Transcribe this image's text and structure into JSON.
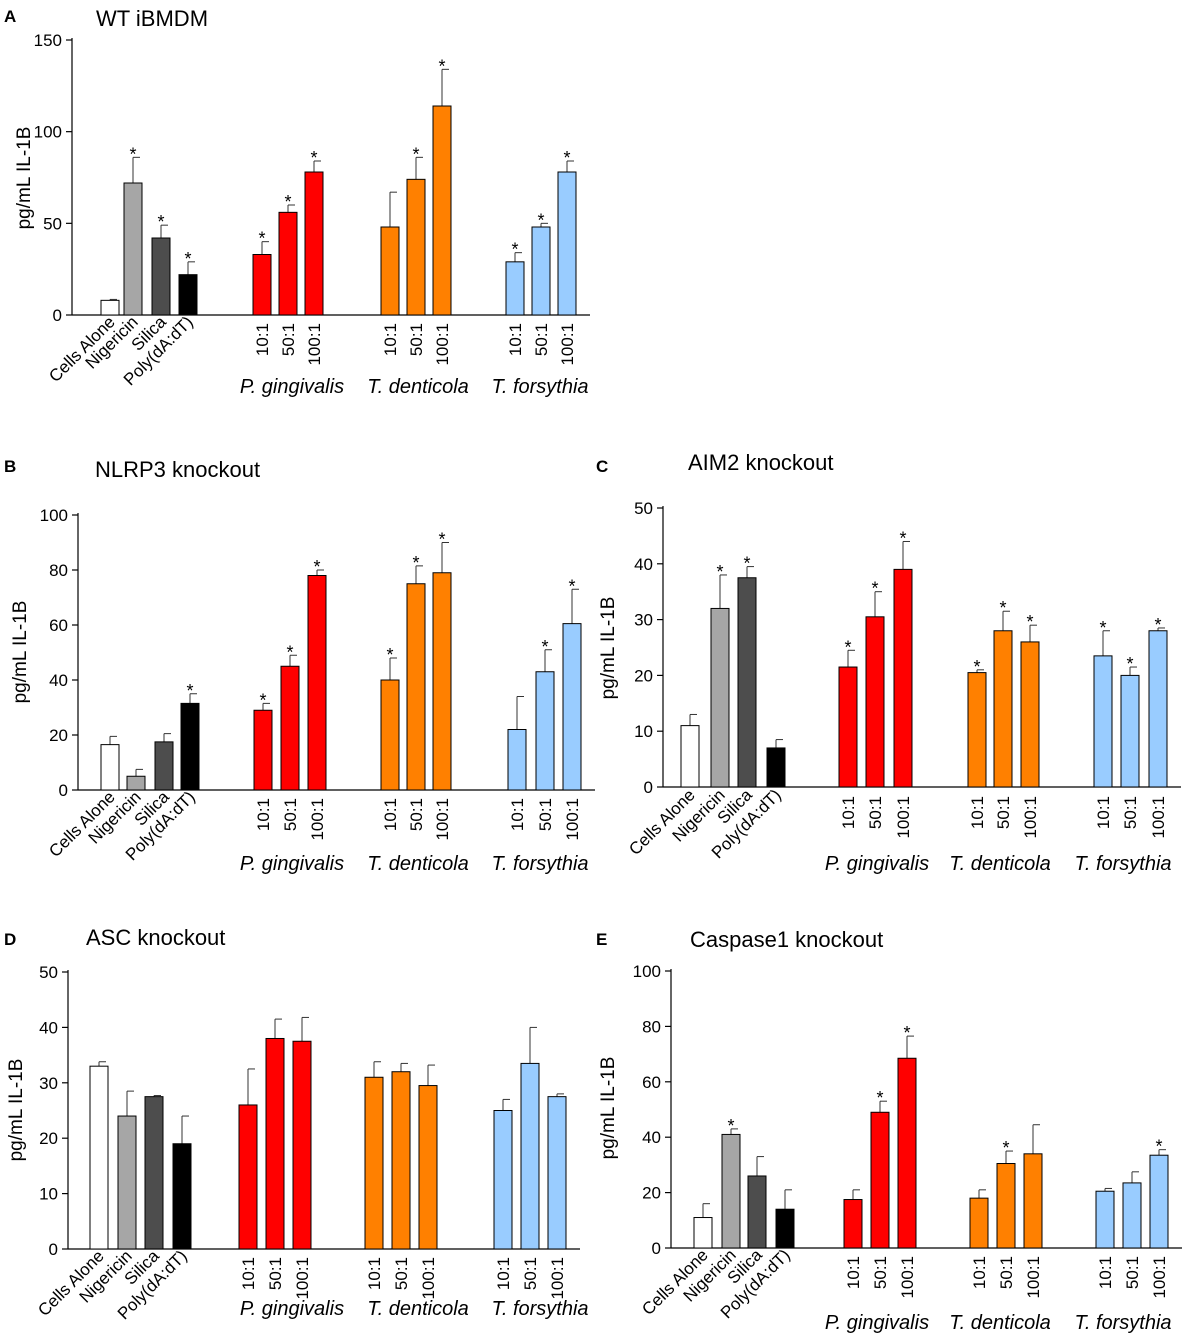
{
  "figure": {
    "group_labels": [
      "P. gingivalis",
      "T. denticola",
      "T. forsythia"
    ],
    "control_labels": [
      "Cells Alone",
      "Nigericin",
      "Silica",
      "Poly(dA:dT)"
    ],
    "ratio_labels": [
      "10:1",
      "50:1",
      "100:1"
    ],
    "colors": {
      "cells_alone": "#ffffff",
      "nigericin": "#a6a6a6",
      "silica": "#4d4d4d",
      "poly": "#000000",
      "p_gingivalis": "#ff0000",
      "t_denticola": "#ff8000",
      "t_forsythia": "#99ccff"
    }
  },
  "chart_data": [
    {
      "type": "bar",
      "letter": "A",
      "title": "WT iBMDM",
      "ylabel": "pg/mL IL-1B",
      "ylim": [
        0,
        150
      ],
      "yticks": [
        0,
        50,
        100,
        150
      ],
      "values": [
        8,
        72,
        42,
        22,
        33,
        56,
        78,
        48,
        74,
        114,
        29,
        48,
        78
      ],
      "errors": [
        0.5,
        14,
        7,
        7,
        7,
        4,
        6,
        19,
        12,
        20,
        5,
        2,
        6
      ],
      "significant": [
        false,
        true,
        true,
        true,
        true,
        true,
        true,
        false,
        true,
        true,
        true,
        true,
        true
      ]
    },
    {
      "type": "bar",
      "letter": "B",
      "title": "NLRP3 knockout",
      "ylabel": "pg/mL IL-1B",
      "ylim": [
        0,
        100
      ],
      "yticks": [
        0,
        20,
        40,
        60,
        80,
        100
      ],
      "values": [
        16.5,
        5,
        17.5,
        31.5,
        29,
        45,
        78,
        40,
        75,
        79,
        22,
        43,
        60.5
      ],
      "errors": [
        3,
        2.5,
        3,
        3.5,
        2.5,
        4,
        2,
        8,
        6.5,
        11,
        12,
        8,
        12.5
      ],
      "significant": [
        false,
        false,
        false,
        true,
        true,
        true,
        true,
        true,
        true,
        true,
        false,
        true,
        true
      ]
    },
    {
      "type": "bar",
      "letter": "C",
      "title": "AIM2 knockout",
      "ylabel": "pg/mL IL-1B",
      "ylim": [
        0,
        50
      ],
      "yticks": [
        0,
        10,
        20,
        30,
        40,
        50
      ],
      "values": [
        11,
        32,
        37.5,
        7,
        21.5,
        30.5,
        39,
        20.5,
        28,
        26,
        23.5,
        20,
        28
      ],
      "errors": [
        2,
        6,
        2,
        1.5,
        3,
        4.5,
        5,
        0.5,
        3.5,
        3,
        4.5,
        1.5,
        0.5
      ],
      "significant": [
        false,
        true,
        true,
        false,
        true,
        true,
        true,
        true,
        true,
        true,
        true,
        true,
        true
      ]
    },
    {
      "type": "bar",
      "letter": "D",
      "title": "ASC knockout",
      "ylabel": "pg/mL IL-1B",
      "ylim": [
        0,
        50
      ],
      "yticks": [
        0,
        10,
        20,
        30,
        40,
        50
      ],
      "values": [
        33,
        24,
        27.5,
        19,
        26,
        38,
        37.5,
        31,
        32,
        29.5,
        25,
        33.5,
        27.5
      ],
      "errors": [
        0.8,
        4.5,
        0.2,
        5,
        6.5,
        3.5,
        4.3,
        2.8,
        1.5,
        3.7,
        2,
        6.5,
        0.5
      ],
      "significant": [
        false,
        false,
        false,
        false,
        false,
        false,
        false,
        false,
        false,
        false,
        false,
        false,
        false
      ]
    },
    {
      "type": "bar",
      "letter": "E",
      "title": "Caspase1 knockout",
      "ylabel": "pg/mL IL-1B",
      "ylim": [
        0,
        100
      ],
      "yticks": [
        0,
        20,
        40,
        60,
        80,
        100
      ],
      "values": [
        11,
        41,
        26,
        14,
        17.5,
        49,
        68.5,
        18,
        30.5,
        34,
        20.5,
        23.5,
        33.5
      ],
      "errors": [
        5,
        2,
        7,
        7,
        3.5,
        4,
        8,
        3,
        4.5,
        10.5,
        1,
        4,
        2
      ],
      "significant": [
        false,
        true,
        false,
        false,
        false,
        true,
        true,
        false,
        true,
        false,
        false,
        false,
        true
      ]
    }
  ]
}
